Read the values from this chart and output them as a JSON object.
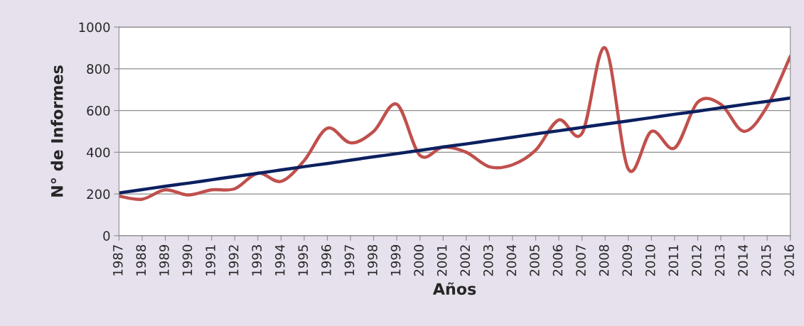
{
  "chart_data": {
    "type": "line",
    "xlabel": "Años",
    "ylabel": "N° de Informes",
    "categories": [
      "1987",
      "1988",
      "1989",
      "1990",
      "1991",
      "1992",
      "1993",
      "1994",
      "1995",
      "1996",
      "1997",
      "1998",
      "1999",
      "2000",
      "2001",
      "2002",
      "2003",
      "2004",
      "2005",
      "2006",
      "2007",
      "2008",
      "2009",
      "2010",
      "2011",
      "2012",
      "2013",
      "2014",
      "2015",
      "2016"
    ],
    "series": [
      {
        "color": "#c0504d",
        "values": [
          190,
          175,
          220,
          195,
          220,
          225,
          300,
          260,
          360,
          515,
          445,
          500,
          630,
          385,
          425,
          400,
          330,
          340,
          410,
          555,
          490,
          900,
          320,
          500,
          420,
          640,
          630,
          500,
          620,
          860
        ]
      },
      {
        "color": "#0c2060",
        "values": [
          205,
          221,
          237,
          252,
          268,
          284,
          299,
          315,
          331,
          346,
          362,
          378,
          393,
          409,
          425,
          440,
          456,
          472,
          488,
          503,
          519,
          535,
          550,
          566,
          582,
          597,
          613,
          629,
          644,
          660
        ]
      }
    ],
    "ylim": [
      0,
      1000
    ],
    "yticks": [
      0,
      200,
      400,
      600,
      800,
      1000
    ],
    "grid": "y",
    "marker": "none",
    "line_style": "solid"
  }
}
